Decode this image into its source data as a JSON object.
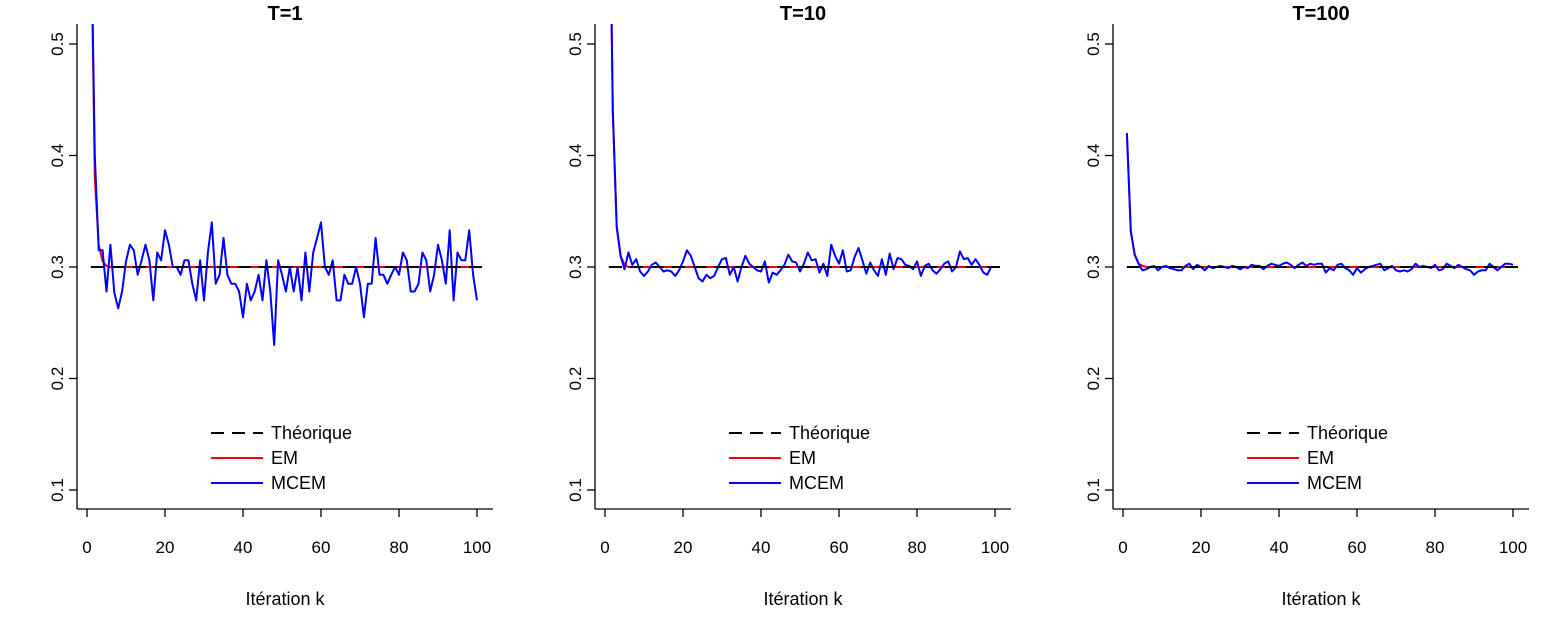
{
  "colors": {
    "theoretical": "#000000",
    "em": "#ff0000",
    "mcem": "#0000ff"
  },
  "chart_data": [
    {
      "type": "line",
      "title": "T=1",
      "xlabel": "Itération k",
      "ylabel": "",
      "xlim": [
        0,
        100
      ],
      "ylim": [
        0.1,
        0.5
      ],
      "xticks": [
        "0",
        "20",
        "40",
        "60",
        "80",
        "100"
      ],
      "yticks": [
        "0.1",
        "0.2",
        "0.3",
        "0.4",
        "0.5"
      ],
      "legend_position": "bottom-center",
      "legend": [
        "Théorique",
        "EM",
        "MCEM"
      ],
      "reference_value": 0.3,
      "x": [
        1,
        2,
        3,
        4,
        5,
        6,
        7,
        8,
        9,
        10,
        11,
        12,
        13,
        14,
        15,
        16,
        17,
        18,
        19,
        20,
        21,
        22,
        23,
        24,
        25,
        26,
        27,
        28,
        29,
        30,
        31,
        32,
        33,
        34,
        35,
        36,
        37,
        38,
        39,
        40,
        41,
        42,
        43,
        44,
        45,
        46,
        47,
        48,
        49,
        50,
        51,
        52,
        53,
        54,
        55,
        56,
        57,
        58,
        59,
        60,
        61,
        62,
        63,
        64,
        65,
        66,
        67,
        68,
        69,
        70,
        71,
        72,
        73,
        74,
        75,
        76,
        77,
        78,
        79,
        80,
        81,
        82,
        83,
        84,
        85,
        86,
        87,
        88,
        89,
        90,
        91,
        92,
        93,
        94,
        95,
        96,
        97,
        98,
        99,
        100
      ],
      "series": [
        {
          "name": "Théorique",
          "style": "dashed",
          "values": "reference"
        },
        {
          "name": "EM",
          "values": [
            0.62,
            0.38,
            0.32,
            0.305,
            0.301,
            0.3,
            0.3,
            0.3,
            0.3,
            0.3,
            0.3,
            0.3,
            0.3,
            0.3,
            0.3,
            0.3,
            0.3,
            0.3,
            0.3,
            0.3,
            0.3,
            0.3,
            0.3,
            0.3,
            0.3,
            0.3,
            0.3,
            0.3,
            0.3,
            0.3,
            0.3,
            0.3,
            0.3,
            0.3,
            0.3,
            0.3,
            0.3,
            0.3,
            0.3,
            0.3,
            0.3,
            0.3,
            0.3,
            0.3,
            0.3,
            0.3,
            0.3,
            0.3,
            0.3,
            0.3,
            0.3,
            0.3,
            0.3,
            0.3,
            0.3,
            0.3,
            0.3,
            0.3,
            0.3,
            0.3,
            0.3,
            0.3,
            0.3,
            0.3,
            0.3,
            0.3,
            0.3,
            0.3,
            0.3,
            0.3,
            0.3,
            0.3,
            0.3,
            0.3,
            0.3,
            0.3,
            0.3,
            0.3,
            0.3,
            0.3,
            0.3,
            0.3,
            0.3,
            0.3,
            0.3,
            0.3,
            0.3,
            0.3,
            0.3,
            0.3,
            0.3,
            0.3,
            0.3,
            0.3,
            0.3,
            0.3,
            0.3,
            0.3,
            0.3,
            0.3
          ]
        },
        {
          "name": "MCEM",
          "values": [
            0.62,
            0.4,
            0.315,
            0.315,
            0.278,
            0.32,
            0.277,
            0.263,
            0.278,
            0.305,
            0.32,
            0.315,
            0.293,
            0.306,
            0.32,
            0.306,
            0.27,
            0.313,
            0.306,
            0.333,
            0.32,
            0.3,
            0.3,
            0.293,
            0.306,
            0.306,
            0.285,
            0.27,
            0.306,
            0.27,
            0.313,
            0.34,
            0.285,
            0.293,
            0.326,
            0.293,
            0.285,
            0.285,
            0.278,
            0.255,
            0.285,
            0.27,
            0.278,
            0.293,
            0.27,
            0.306,
            0.278,
            0.23,
            0.306,
            0.293,
            0.278,
            0.3,
            0.278,
            0.3,
            0.27,
            0.313,
            0.278,
            0.313,
            0.326,
            0.34,
            0.3,
            0.293,
            0.306,
            0.27,
            0.27,
            0.293,
            0.285,
            0.285,
            0.3,
            0.285,
            0.255,
            0.285,
            0.285,
            0.326,
            0.293,
            0.293,
            0.285,
            0.293,
            0.3,
            0.293,
            0.313,
            0.306,
            0.278,
            0.278,
            0.285,
            0.313,
            0.306,
            0.278,
            0.293,
            0.32,
            0.306,
            0.285,
            0.333,
            0.27,
            0.313,
            0.306,
            0.306,
            0.333,
            0.293,
            0.27
          ]
        }
      ]
    },
    {
      "type": "line",
      "title": "T=10",
      "xlabel": "Itération k",
      "ylabel": "",
      "xlim": [
        0,
        100
      ],
      "ylim": [
        0.1,
        0.5
      ],
      "xticks": [
        "0",
        "20",
        "40",
        "60",
        "80",
        "100"
      ],
      "yticks": [
        "0.1",
        "0.2",
        "0.3",
        "0.4",
        "0.5"
      ],
      "legend_position": "bottom-center",
      "legend": [
        "Théorique",
        "EM",
        "MCEM"
      ],
      "reference_value": 0.3,
      "x": [
        1,
        2,
        3,
        4,
        5,
        6,
        7,
        8,
        9,
        10,
        11,
        12,
        13,
        14,
        15,
        16,
        17,
        18,
        19,
        20,
        21,
        22,
        23,
        24,
        25,
        26,
        27,
        28,
        29,
        30,
        31,
        32,
        33,
        34,
        35,
        36,
        37,
        38,
        39,
        40,
        41,
        42,
        43,
        44,
        45,
        46,
        47,
        48,
        49,
        50,
        51,
        52,
        53,
        54,
        55,
        56,
        57,
        58,
        59,
        60,
        61,
        62,
        63,
        64,
        65,
        66,
        67,
        68,
        69,
        70,
        71,
        72,
        73,
        74,
        75,
        76,
        77,
        78,
        79,
        80,
        81,
        82,
        83,
        84,
        85,
        86,
        87,
        88,
        89,
        90,
        91,
        92,
        93,
        94,
        95,
        96,
        97,
        98,
        99,
        100
      ],
      "series": [
        {
          "name": "Théorique",
          "style": "dashed",
          "values": "reference"
        },
        {
          "name": "EM",
          "values": [
            0.7,
            0.44,
            0.335,
            0.31,
            0.302,
            0.3,
            0.3,
            0.3,
            0.3,
            0.3,
            0.3,
            0.3,
            0.3,
            0.3,
            0.3,
            0.3,
            0.3,
            0.3,
            0.3,
            0.3,
            0.3,
            0.3,
            0.3,
            0.3,
            0.3,
            0.3,
            0.3,
            0.3,
            0.3,
            0.3,
            0.3,
            0.3,
            0.3,
            0.3,
            0.3,
            0.3,
            0.3,
            0.3,
            0.3,
            0.3,
            0.3,
            0.3,
            0.3,
            0.3,
            0.3,
            0.3,
            0.3,
            0.3,
            0.3,
            0.3,
            0.3,
            0.3,
            0.3,
            0.3,
            0.3,
            0.3,
            0.3,
            0.3,
            0.3,
            0.3,
            0.3,
            0.3,
            0.3,
            0.3,
            0.3,
            0.3,
            0.3,
            0.3,
            0.3,
            0.3,
            0.3,
            0.3,
            0.3,
            0.3,
            0.3,
            0.3,
            0.3,
            0.3,
            0.3,
            0.3,
            0.3,
            0.3,
            0.3,
            0.3,
            0.3,
            0.3,
            0.3,
            0.3,
            0.3,
            0.3,
            0.3,
            0.3,
            0.3,
            0.3,
            0.3,
            0.3,
            0.3,
            0.3,
            0.3,
            0.3
          ]
        },
        {
          "name": "MCEM",
          "values": [
            0.7,
            0.44,
            0.337,
            0.31,
            0.298,
            0.313,
            0.302,
            0.307,
            0.296,
            0.292,
            0.296,
            0.302,
            0.304,
            0.3,
            0.296,
            0.297,
            0.296,
            0.292,
            0.297,
            0.305,
            0.315,
            0.31,
            0.3,
            0.29,
            0.287,
            0.293,
            0.29,
            0.292,
            0.3,
            0.307,
            0.308,
            0.293,
            0.3,
            0.287,
            0.3,
            0.31,
            0.303,
            0.3,
            0.297,
            0.296,
            0.305,
            0.286,
            0.295,
            0.293,
            0.297,
            0.302,
            0.311,
            0.305,
            0.304,
            0.296,
            0.303,
            0.313,
            0.306,
            0.307,
            0.295,
            0.303,
            0.292,
            0.32,
            0.31,
            0.303,
            0.315,
            0.296,
            0.297,
            0.309,
            0.317,
            0.306,
            0.294,
            0.304,
            0.297,
            0.292,
            0.307,
            0.293,
            0.312,
            0.298,
            0.308,
            0.307,
            0.302,
            0.301,
            0.298,
            0.305,
            0.292,
            0.301,
            0.303,
            0.297,
            0.294,
            0.298,
            0.303,
            0.305,
            0.296,
            0.3,
            0.314,
            0.307,
            0.308,
            0.302,
            0.307,
            0.302,
            0.295,
            0.293,
            0.3,
            0.3
          ]
        }
      ]
    },
    {
      "type": "line",
      "title": "T=100",
      "xlabel": "Itération k",
      "ylabel": "",
      "xlim": [
        0,
        100
      ],
      "ylim": [
        0.1,
        0.5
      ],
      "xticks": [
        "0",
        "20",
        "40",
        "60",
        "80",
        "100"
      ],
      "yticks": [
        "0.1",
        "0.2",
        "0.3",
        "0.4",
        "0.5"
      ],
      "legend_position": "bottom-center",
      "legend": [
        "Théorique",
        "EM",
        "MCEM"
      ],
      "reference_value": 0.3,
      "x": [
        1,
        2,
        3,
        4,
        5,
        6,
        7,
        8,
        9,
        10,
        11,
        12,
        13,
        14,
        15,
        16,
        17,
        18,
        19,
        20,
        21,
        22,
        23,
        24,
        25,
        26,
        27,
        28,
        29,
        30,
        31,
        32,
        33,
        34,
        35,
        36,
        37,
        38,
        39,
        40,
        41,
        42,
        43,
        44,
        45,
        46,
        47,
        48,
        49,
        50,
        51,
        52,
        53,
        54,
        55,
        56,
        57,
        58,
        59,
        60,
        61,
        62,
        63,
        64,
        65,
        66,
        67,
        68,
        69,
        70,
        71,
        72,
        73,
        74,
        75,
        76,
        77,
        78,
        79,
        80,
        81,
        82,
        83,
        84,
        85,
        86,
        87,
        88,
        89,
        90,
        91,
        92,
        93,
        94,
        95,
        96,
        97,
        98,
        99,
        100
      ],
      "series": [
        {
          "name": "Théorique",
          "style": "dashed",
          "values": "reference"
        },
        {
          "name": "EM",
          "values": [
            0.42,
            0.332,
            0.311,
            0.303,
            0.301,
            0.3,
            0.3,
            0.3,
            0.3,
            0.3,
            0.3,
            0.3,
            0.3,
            0.3,
            0.3,
            0.3,
            0.3,
            0.3,
            0.3,
            0.3,
            0.3,
            0.3,
            0.3,
            0.3,
            0.3,
            0.3,
            0.3,
            0.3,
            0.3,
            0.3,
            0.3,
            0.3,
            0.3,
            0.3,
            0.3,
            0.3,
            0.3,
            0.3,
            0.3,
            0.3,
            0.3,
            0.3,
            0.3,
            0.3,
            0.3,
            0.3,
            0.3,
            0.3,
            0.3,
            0.3,
            0.3,
            0.3,
            0.3,
            0.3,
            0.3,
            0.3,
            0.3,
            0.3,
            0.3,
            0.3,
            0.3,
            0.3,
            0.3,
            0.3,
            0.3,
            0.3,
            0.3,
            0.3,
            0.3,
            0.3,
            0.3,
            0.3,
            0.3,
            0.3,
            0.3,
            0.3,
            0.3,
            0.3,
            0.3,
            0.3,
            0.3,
            0.3,
            0.3,
            0.3,
            0.3,
            0.3,
            0.3,
            0.3,
            0.3,
            0.3,
            0.3,
            0.3,
            0.3,
            0.3,
            0.3,
            0.3,
            0.3,
            0.3,
            0.3,
            0.3
          ]
        },
        {
          "name": "MCEM",
          "values": [
            0.42,
            0.332,
            0.311,
            0.303,
            0.297,
            0.298,
            0.3,
            0.301,
            0.297,
            0.3,
            0.301,
            0.299,
            0.298,
            0.297,
            0.297,
            0.301,
            0.303,
            0.298,
            0.302,
            0.3,
            0.297,
            0.301,
            0.299,
            0.3,
            0.301,
            0.3,
            0.299,
            0.301,
            0.3,
            0.298,
            0.3,
            0.299,
            0.302,
            0.301,
            0.301,
            0.298,
            0.301,
            0.303,
            0.302,
            0.301,
            0.303,
            0.304,
            0.302,
            0.299,
            0.302,
            0.304,
            0.301,
            0.303,
            0.302,
            0.303,
            0.303,
            0.295,
            0.299,
            0.297,
            0.302,
            0.303,
            0.299,
            0.297,
            0.293,
            0.299,
            0.295,
            0.298,
            0.3,
            0.301,
            0.302,
            0.303,
            0.297,
            0.299,
            0.301,
            0.297,
            0.296,
            0.297,
            0.296,
            0.298,
            0.303,
            0.3,
            0.301,
            0.3,
            0.299,
            0.302,
            0.297,
            0.298,
            0.303,
            0.301,
            0.299,
            0.302,
            0.3,
            0.298,
            0.297,
            0.293,
            0.296,
            0.297,
            0.297,
            0.303,
            0.3,
            0.297,
            0.3,
            0.303,
            0.303,
            0.302
          ]
        }
      ]
    }
  ]
}
